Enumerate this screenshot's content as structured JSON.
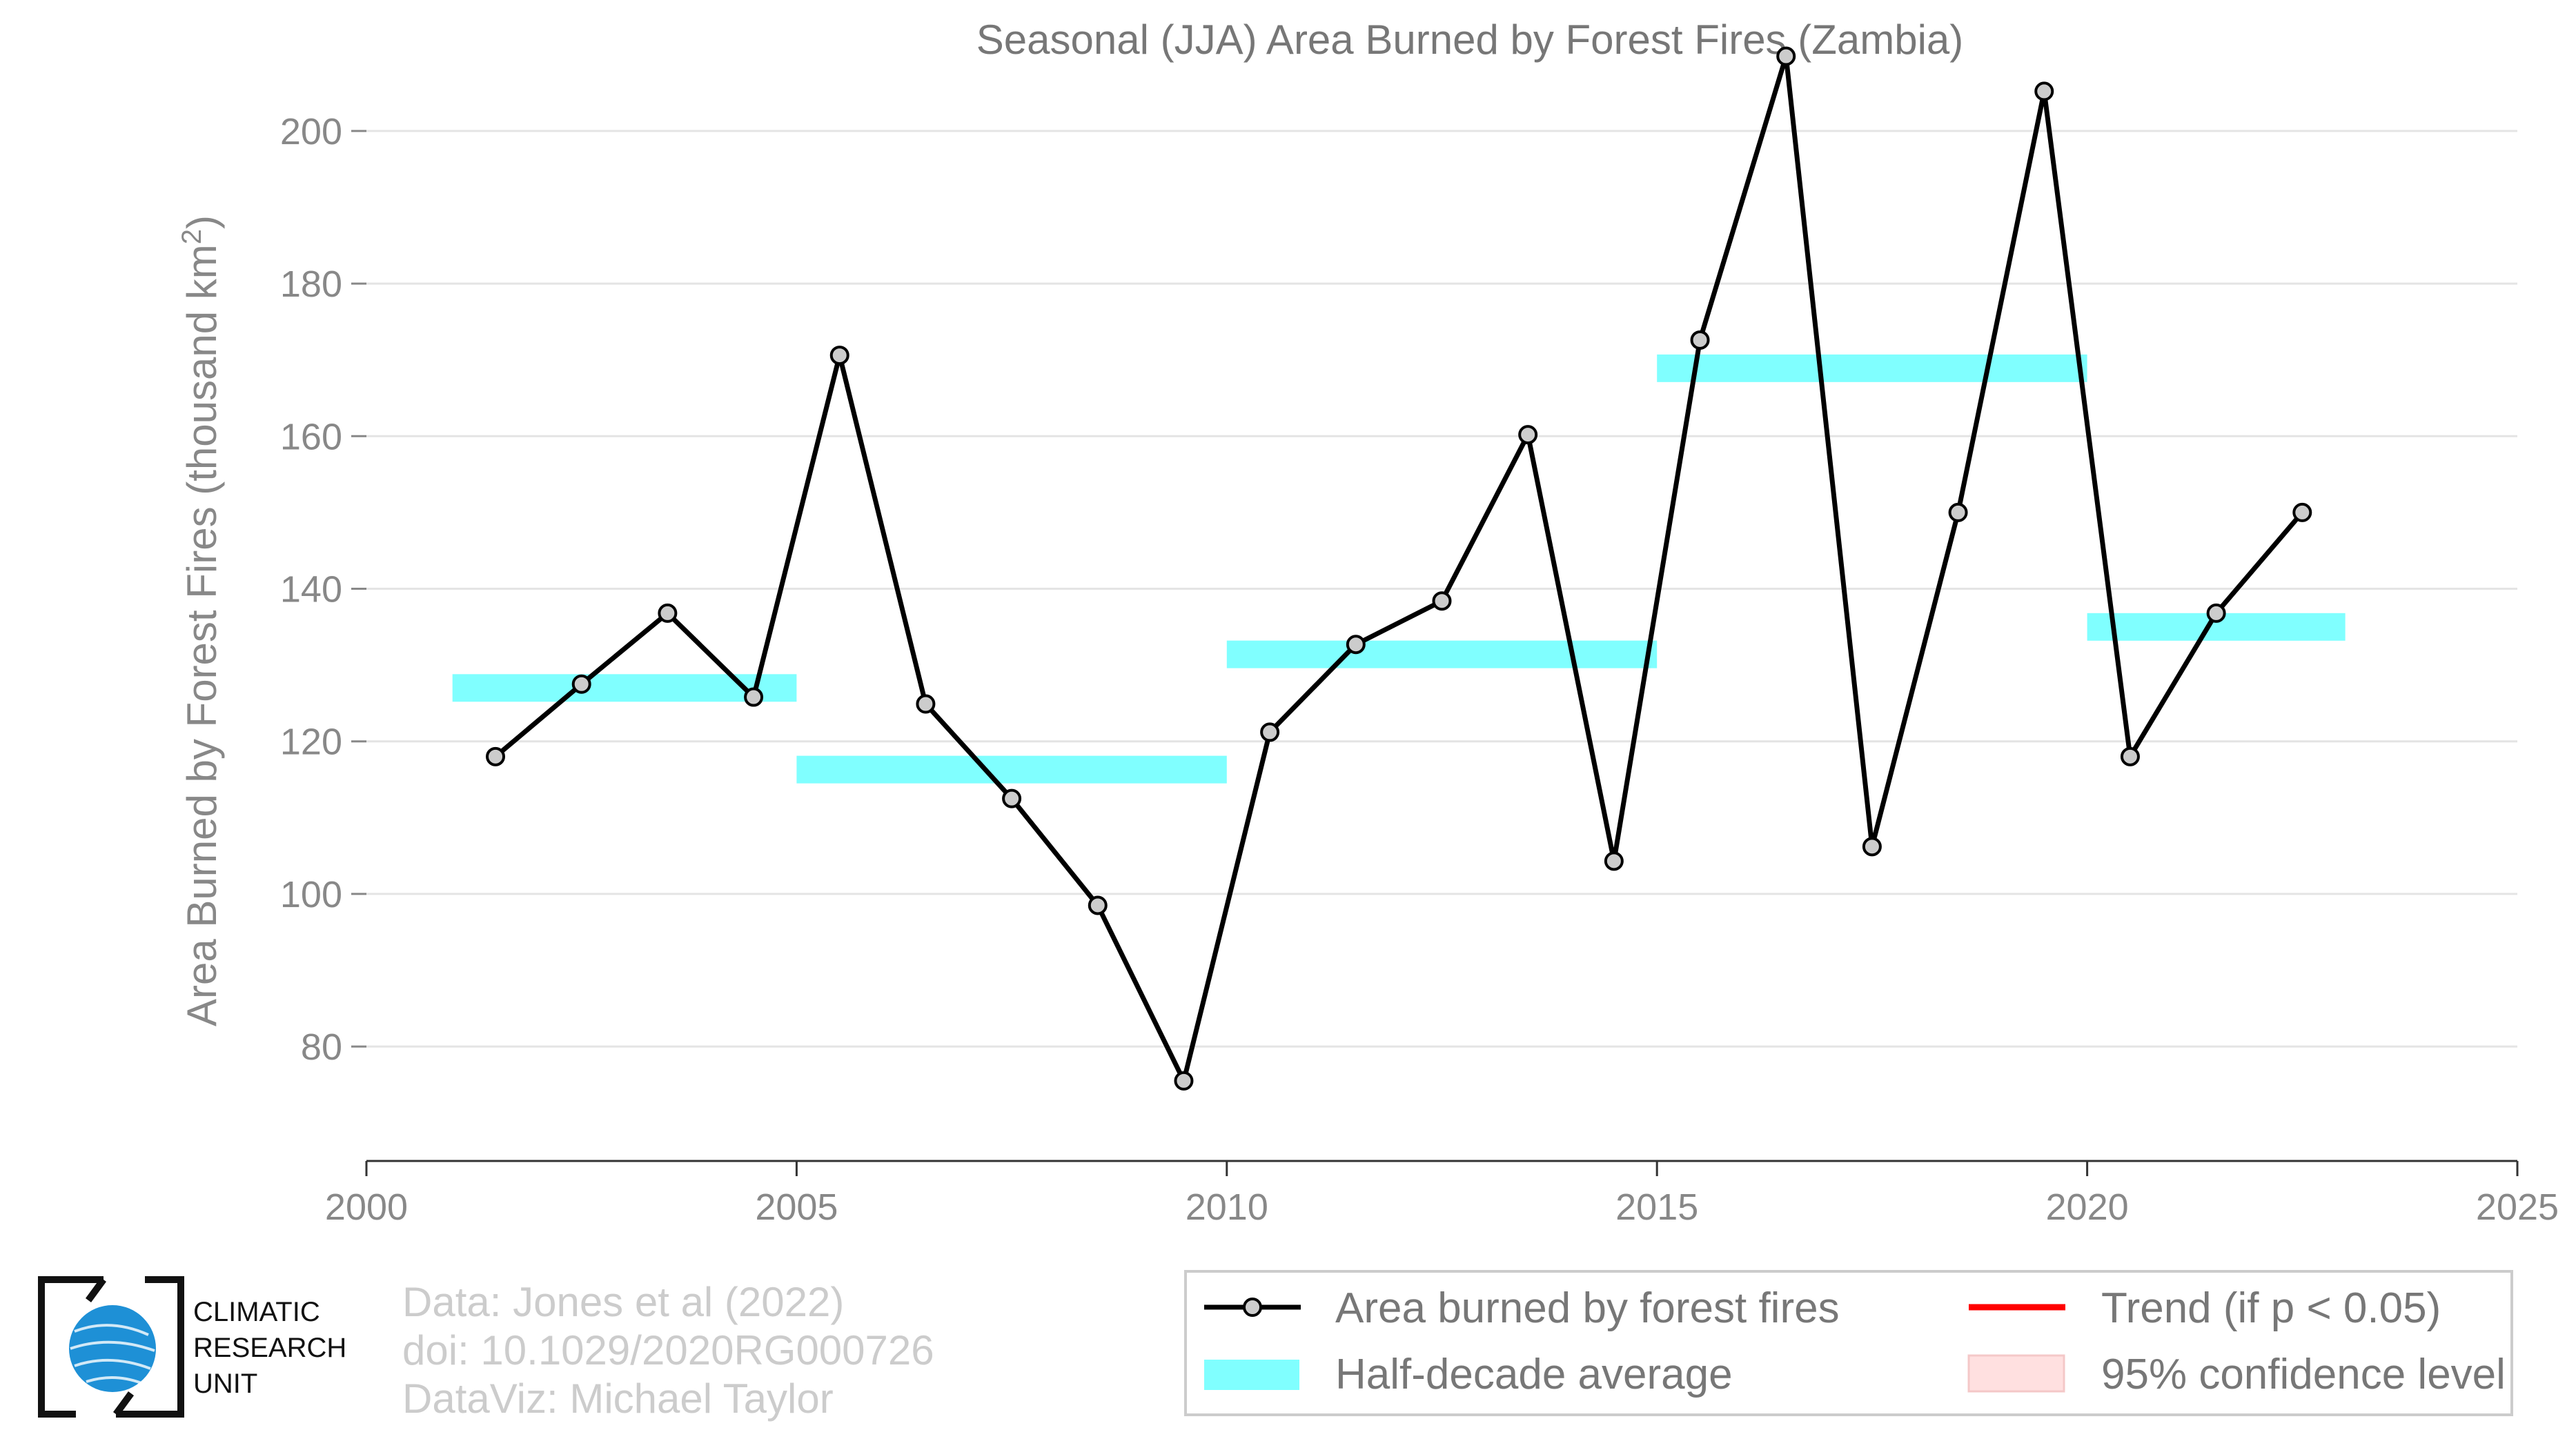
{
  "chart_data": {
    "type": "line",
    "title": "Seasonal (JJA) Area Burned by Forest Fires (Zambia)",
    "ylabel": "Area Burned by Forest Fires (thousand km",
    "ylabel_sup": "2",
    "ylabel_close": ")",
    "xlabel": "",
    "xlim": [
      2000,
      2025
    ],
    "ylim": [
      65,
      215
    ],
    "xticks": [
      2000,
      2005,
      2010,
      2015,
      2020,
      2025
    ],
    "yticks": [
      80,
      100,
      120,
      140,
      160,
      180,
      200
    ],
    "grid": true,
    "series": [
      {
        "name": "Area burned by forest fires",
        "color": "#000000",
        "marker_fill": "#cccccc",
        "x": [
          2001.5,
          2002.5,
          2003.5,
          2004.5,
          2005.5,
          2006.5,
          2007.5,
          2008.5,
          2009.5,
          2010.5,
          2011.5,
          2012.5,
          2013.5,
          2014.5,
          2015.5,
          2016.5,
          2017.5,
          2018.5,
          2019.5,
          2020.5,
          2021.5,
          2022.5
        ],
        "values": [
          118,
          127.5,
          136.8,
          125.8,
          170.6,
          124.9,
          112.5,
          98.5,
          75.5,
          121.2,
          132.7,
          138.4,
          160.2,
          104.3,
          172.6,
          209.8,
          106.2,
          150,
          205.2,
          118,
          136.8,
          150
        ]
      }
    ],
    "half_decade_average": {
      "name": "Half-decade average",
      "color": "#80ffff",
      "segments": [
        {
          "x0": 2001,
          "x1": 2005,
          "value": 127
        },
        {
          "x0": 2005,
          "x1": 2010,
          "value": 116.3
        },
        {
          "x0": 2010,
          "x1": 2015,
          "value": 131.4
        },
        {
          "x0": 2015,
          "x1": 2020,
          "value": 168.9
        },
        {
          "x0": 2020,
          "x1": 2023,
          "value": 135
        }
      ]
    },
    "legend": {
      "position": "bottom-right",
      "items": [
        {
          "label": "Area burned by forest fires",
          "kind": "line-marker",
          "color": "#000000"
        },
        {
          "label": "Trend (if p < 0.05)",
          "kind": "line",
          "color": "#ff0000"
        },
        {
          "label": "Half-decade average",
          "kind": "band",
          "color": "#80ffff"
        },
        {
          "label": "95% confidence level",
          "kind": "band",
          "color": "#ffdddd"
        }
      ]
    }
  },
  "credits": {
    "line1": "Data: Jones et al (2022)",
    "line2": "doi: 10.1029/2020RG000726",
    "line3": "DataViz: Michael Taylor"
  },
  "logo": {
    "line1": "CLIMATIC",
    "line2": "RESEARCH",
    "line3": "UNIT"
  }
}
